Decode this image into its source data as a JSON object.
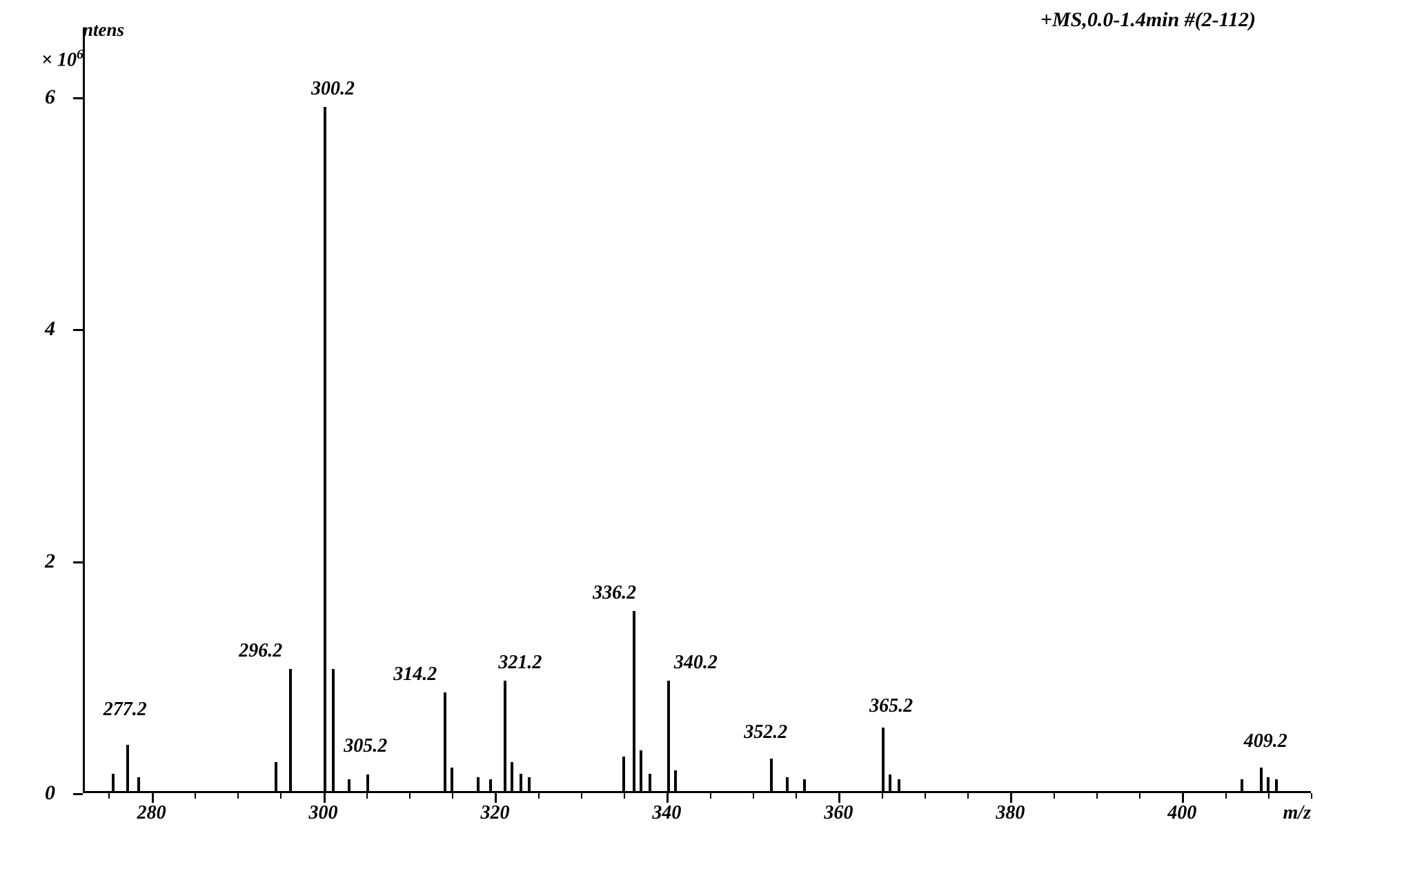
{
  "chart": {
    "type": "mass_spectrum",
    "y_axis": {
      "title": "ntens",
      "multiplier": "× 10",
      "exponent": "6",
      "ticks": [
        0,
        2,
        4,
        6
      ],
      "ylim": [
        0,
        6.6
      ]
    },
    "x_axis": {
      "title": "m/z",
      "ticks": [
        280,
        300,
        320,
        340,
        360,
        380,
        400
      ],
      "xlim": [
        272,
        415
      ]
    },
    "top_label": "+MS,0.0-1.4min #(2-112)",
    "background_color": "#ffffff",
    "line_color": "#000000",
    "line_width": 3,
    "peak_width": 4,
    "font_family": "Times New Roman",
    "label_fontsize": 28,
    "axis_fontsize": 30,
    "peaks": [
      {
        "mz": 275.5,
        "intensity": 0.15,
        "label": ""
      },
      {
        "mz": 277.2,
        "intensity": 0.4,
        "label": "277.2",
        "label_x_offset": -35,
        "label_y_offset": 35
      },
      {
        "mz": 278.5,
        "intensity": 0.12,
        "label": ""
      },
      {
        "mz": 294.5,
        "intensity": 0.25,
        "label": ""
      },
      {
        "mz": 296.2,
        "intensity": 1.05,
        "label": "296.2",
        "label_x_offset": -75,
        "label_y_offset": 10
      },
      {
        "mz": 300.2,
        "intensity": 5.9,
        "label": "300.2",
        "label_x_offset": -20,
        "label_y_offset": 10
      },
      {
        "mz": 301.2,
        "intensity": 1.05,
        "label": ""
      },
      {
        "mz": 303.0,
        "intensity": 0.1,
        "label": ""
      },
      {
        "mz": 305.2,
        "intensity": 0.14,
        "label": "305.2",
        "label_x_offset": -35,
        "label_y_offset": 25
      },
      {
        "mz": 314.2,
        "intensity": 0.85,
        "label": "314.2",
        "label_x_offset": -75,
        "label_y_offset": 10
      },
      {
        "mz": 315.0,
        "intensity": 0.2,
        "label": ""
      },
      {
        "mz": 318.0,
        "intensity": 0.12,
        "label": ""
      },
      {
        "mz": 319.5,
        "intensity": 0.1,
        "label": ""
      },
      {
        "mz": 321.2,
        "intensity": 0.95,
        "label": "321.2",
        "label_x_offset": -10,
        "label_y_offset": 10
      },
      {
        "mz": 322.0,
        "intensity": 0.25,
        "label": ""
      },
      {
        "mz": 323.0,
        "intensity": 0.15,
        "label": ""
      },
      {
        "mz": 324.0,
        "intensity": 0.12,
        "label": ""
      },
      {
        "mz": 335.0,
        "intensity": 0.3,
        "label": ""
      },
      {
        "mz": 336.2,
        "intensity": 1.55,
        "label": "336.2",
        "label_x_offset": -60,
        "label_y_offset": 10
      },
      {
        "mz": 337.0,
        "intensity": 0.35,
        "label": ""
      },
      {
        "mz": 338.0,
        "intensity": 0.15,
        "label": ""
      },
      {
        "mz": 340.2,
        "intensity": 0.95,
        "label": "340.2",
        "label_x_offset": 8,
        "label_y_offset": 10
      },
      {
        "mz": 341.0,
        "intensity": 0.18,
        "label": ""
      },
      {
        "mz": 352.2,
        "intensity": 0.28,
        "label": "352.2",
        "label_x_offset": -40,
        "label_y_offset": 22
      },
      {
        "mz": 354.0,
        "intensity": 0.12,
        "label": ""
      },
      {
        "mz": 356.0,
        "intensity": 0.1,
        "label": ""
      },
      {
        "mz": 365.2,
        "intensity": 0.55,
        "label": "365.2",
        "label_x_offset": -20,
        "label_y_offset": 15
      },
      {
        "mz": 366.0,
        "intensity": 0.14,
        "label": ""
      },
      {
        "mz": 367.0,
        "intensity": 0.1,
        "label": ""
      },
      {
        "mz": 407.0,
        "intensity": 0.1,
        "label": ""
      },
      {
        "mz": 409.2,
        "intensity": 0.2,
        "label": "409.2",
        "label_x_offset": -25,
        "label_y_offset": 22
      },
      {
        "mz": 410.0,
        "intensity": 0.12,
        "label": ""
      },
      {
        "mz": 411.0,
        "intensity": 0.1,
        "label": ""
      }
    ]
  }
}
